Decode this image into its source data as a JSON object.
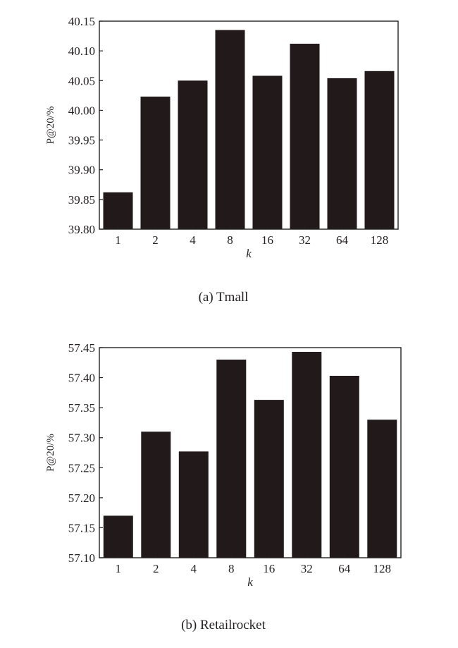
{
  "colors": {
    "bar": "#221a1a",
    "axis": "#231f20",
    "background": "#ffffff"
  },
  "chart_data": [
    {
      "type": "bar",
      "caption": "(a) Tmall",
      "categories": [
        "1",
        "2",
        "4",
        "8",
        "16",
        "32",
        "64",
        "128"
      ],
      "values": [
        39.862,
        40.023,
        40.05,
        40.135,
        40.058,
        40.112,
        40.054,
        40.066
      ],
      "xlabel": "k",
      "ylabel": "P@20/%",
      "ylim": [
        39.8,
        40.15
      ],
      "yticks": [
        "39.80",
        "39.85",
        "39.90",
        "39.95",
        "40.00",
        "40.05",
        "40.10",
        "40.15"
      ],
      "grid": false
    },
    {
      "type": "bar",
      "caption": "(b) Retailrocket",
      "categories": [
        "1",
        "2",
        "4",
        "8",
        "16",
        "32",
        "64",
        "128"
      ],
      "values": [
        57.17,
        57.31,
        57.277,
        57.43,
        57.363,
        57.443,
        57.403,
        57.33
      ],
      "xlabel": "k",
      "ylabel": "P@20/%",
      "ylim": [
        57.1,
        57.45
      ],
      "yticks": [
        "57.10",
        "57.15",
        "57.20",
        "57.25",
        "57.30",
        "57.35",
        "57.40",
        "57.45"
      ],
      "grid": false
    }
  ]
}
